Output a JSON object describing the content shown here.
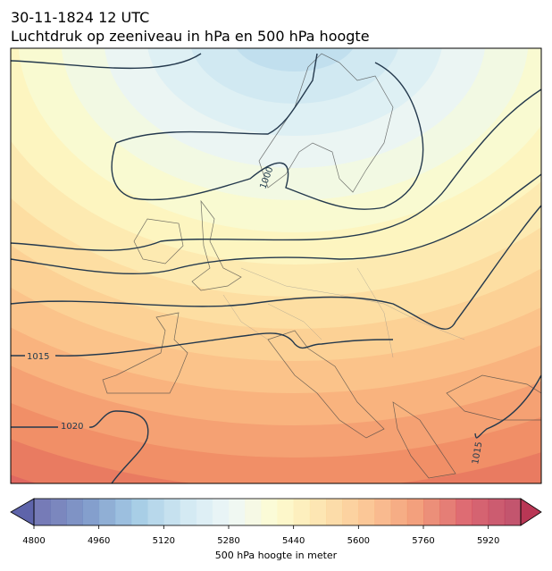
{
  "header": {
    "date": "30-11-1824 12 UTC",
    "title": "Luchtdruk op zeeniveau in hPa en 500 hPa hoogte"
  },
  "map": {
    "contour_labels": [
      "1000",
      "1015",
      "1020",
      "1015"
    ]
  },
  "colorbar": {
    "range": [
      4800,
      6000
    ],
    "step": 40,
    "ticks": [
      4800,
      4960,
      5120,
      5280,
      5440,
      5600,
      5760,
      5920
    ],
    "label": "500 hPa hoogte in meter"
  }
}
